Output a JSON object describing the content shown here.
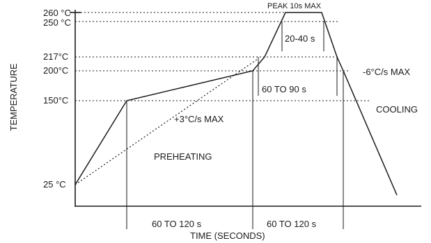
{
  "diagram": {
    "y_axis_label": "TEMPERATURE",
    "x_axis_label": "TIME (SECONDS)",
    "temperature_ticks": [
      "260 °C",
      "250 °C",
      "217°C",
      "200°C",
      "150°C",
      "25 °C"
    ],
    "annotations": {
      "peak": "PEAK 10s MAX",
      "peak_window": "20-40 s",
      "above_liquidus": "60 TO 90 s",
      "ramp_up": "+3°C/s MAX",
      "ramp_down": "-6°C/s MAX",
      "cooling": "COOLING",
      "preheating": "PREHEATING"
    },
    "time_intervals": [
      "60 TO 120 s",
      "60 TO 120 s"
    ]
  }
}
